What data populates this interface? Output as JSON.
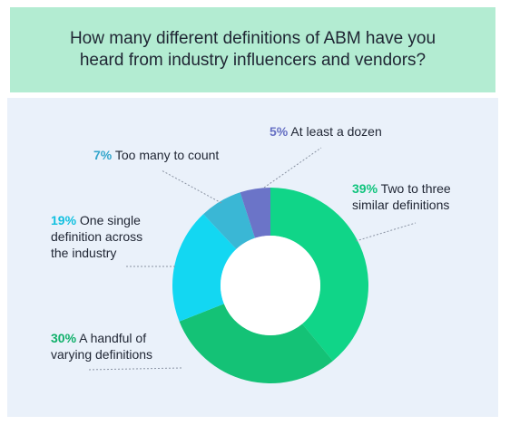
{
  "header": {
    "title_line1": "How many different definitions of ABM have you",
    "title_line2": "heard from industry influencers and vendors?"
  },
  "chart_data": {
    "type": "pie",
    "donut": true,
    "title": "How many different definitions of ABM have you heard from industry influencers and vendors?",
    "slices": [
      {
        "label": "Two to three similar definitions",
        "value": 39,
        "pct_text": "39%",
        "line1": "Two to three",
        "line2": "similar definitions",
        "color": "#10d588",
        "label_color": "#10c47d"
      },
      {
        "label": "A handful of varying definitions",
        "value": 30,
        "pct_text": "30%",
        "line1": "A handful of",
        "line2": "varying definitions",
        "color": "#14c276",
        "label_color": "#10b06a"
      },
      {
        "label": "One single definition across the industry",
        "value": 19,
        "pct_text": "19%",
        "line1": "One single",
        "line2": "definition across",
        "line3": "the industry",
        "color": "#13d7f2",
        "label_color": "#12c0e0"
      },
      {
        "label": "Too many to count",
        "value": 7,
        "pct_text": "7%",
        "line1": "Too many to count",
        "color": "#3ab7d5",
        "label_color": "#34a6cc"
      },
      {
        "label": "At least a dozen",
        "value": 5,
        "pct_text": "5%",
        "line1": "At least a dozen",
        "color": "#6b74c8",
        "label_color": "#6670c4"
      }
    ]
  }
}
